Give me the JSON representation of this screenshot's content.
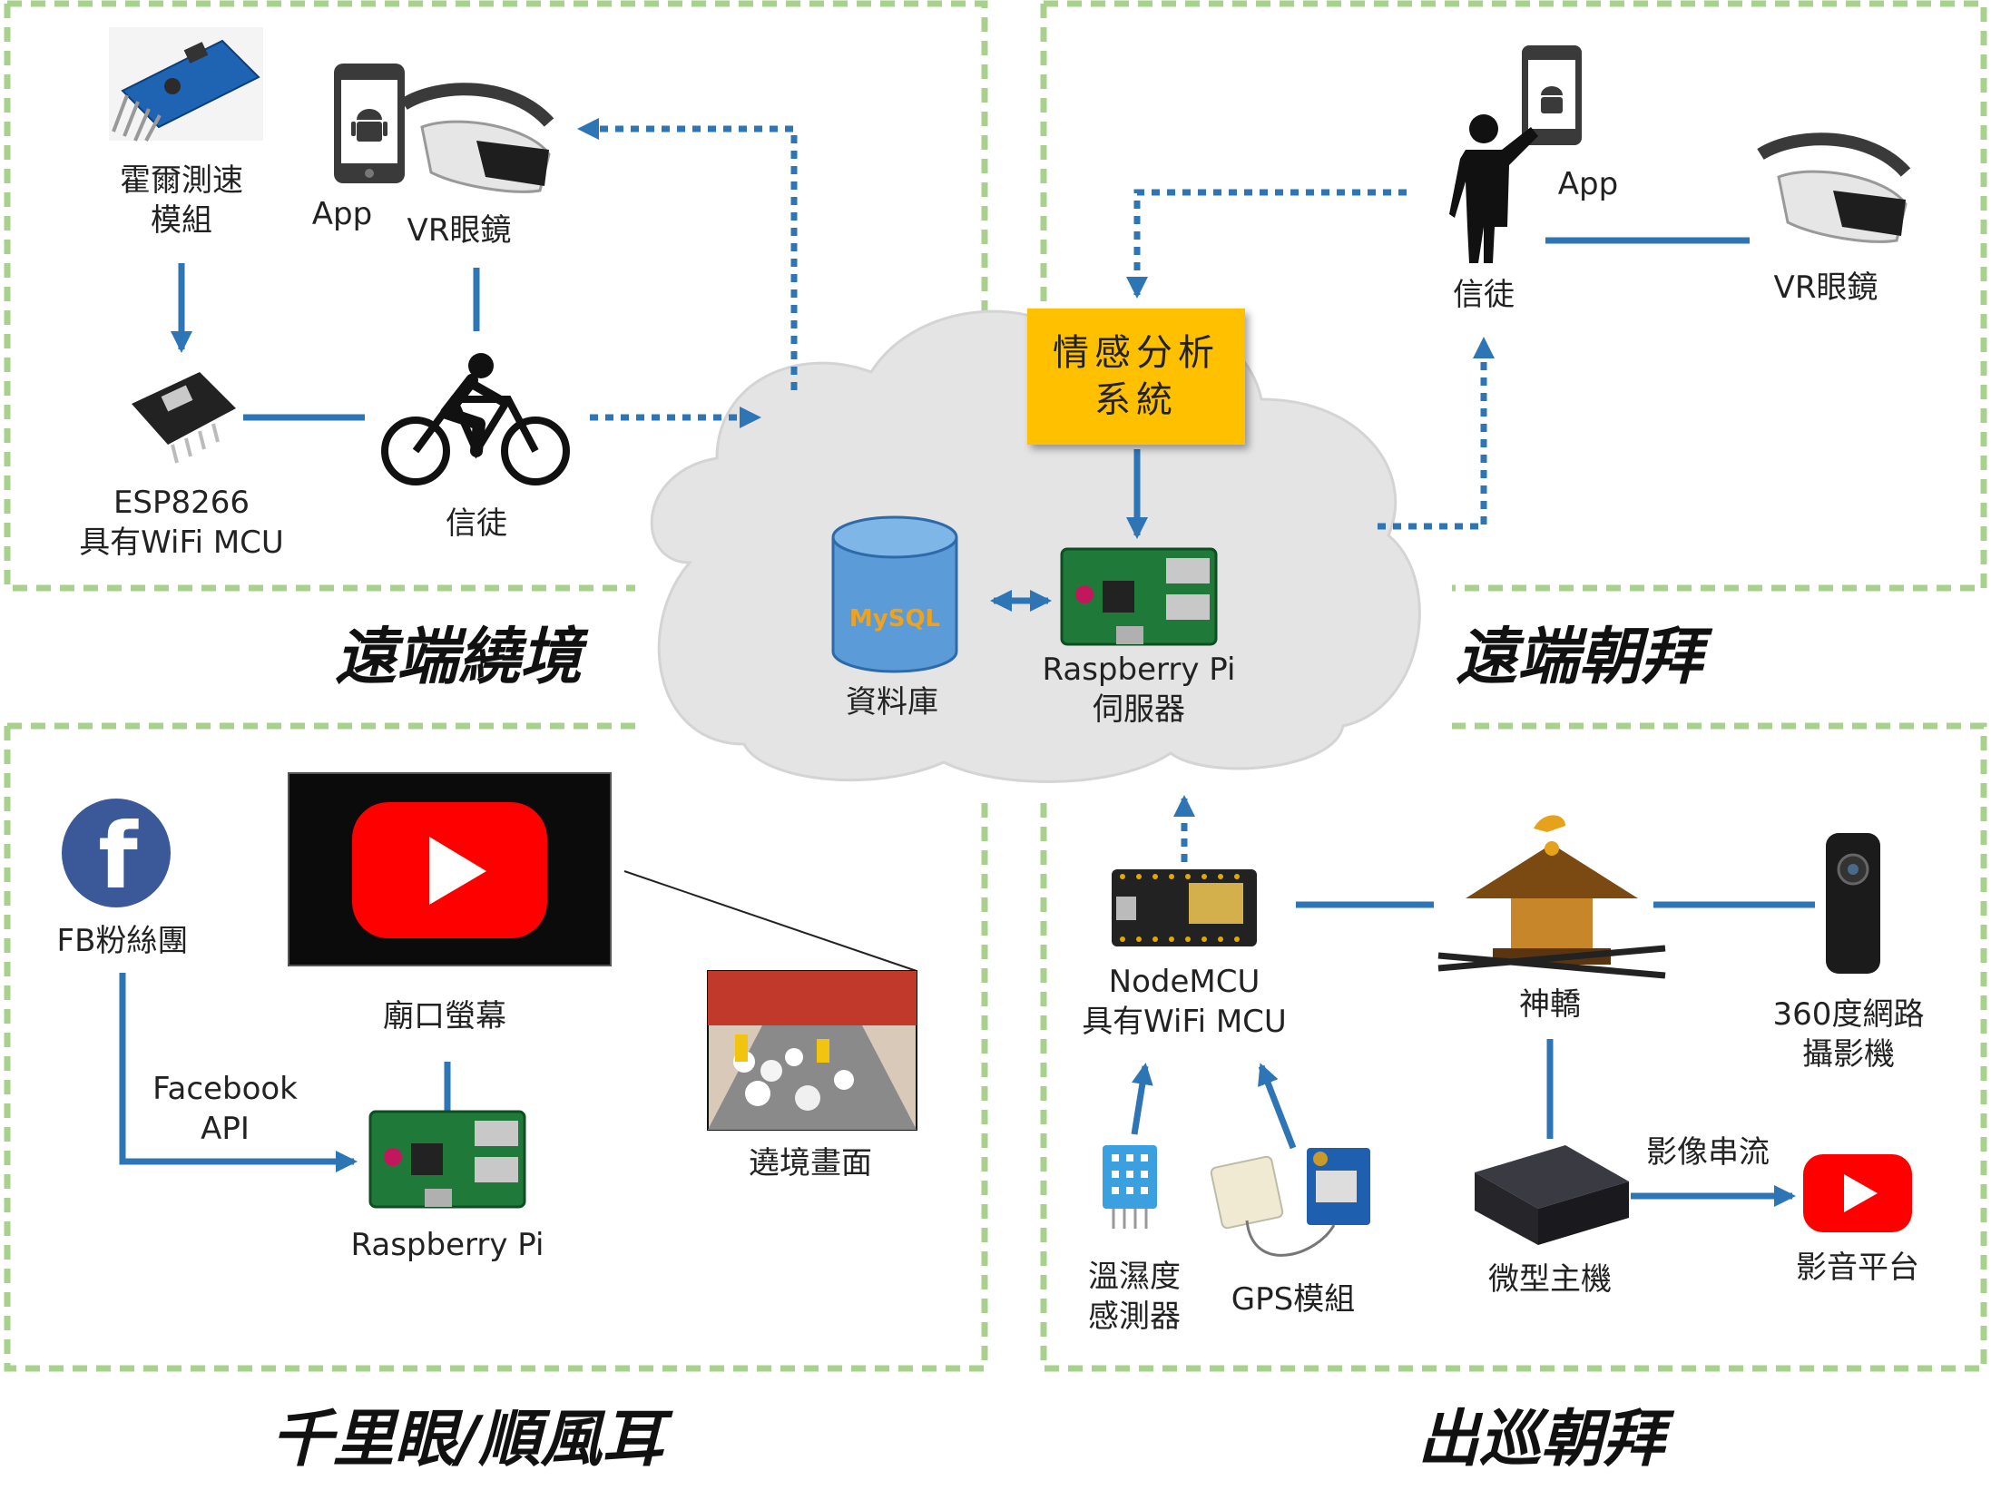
{
  "sections": {
    "remote_pilgrimage_tour": {
      "title": "遠端繞境",
      "hall_sensor": "霍爾測速\n模組",
      "app": "App",
      "vr_glasses": "VR眼鏡",
      "esp8266": "ESP8266\n具有WiFi MCU",
      "believer": "信徒"
    },
    "remote_worship": {
      "title": "遠端朝拜",
      "app": "App",
      "believer": "信徒",
      "vr_glasses": "VR眼鏡"
    },
    "clairvoyance": {
      "title": "千里眼/順風耳",
      "fb_fan_page": "FB粉絲團",
      "temple_screen": "廟口螢幕",
      "facebook_api": "Facebook\nAPI",
      "raspberry_pi": "Raspberry Pi",
      "procession_view": "遶境畫面"
    },
    "procession_worship": {
      "title": "出巡朝拜",
      "nodemcu": "NodeMCU\n具有WiFi MCU",
      "palanquin": "神轎",
      "camera_360": "360度網路\n攝影機",
      "temp_humidity": "溫濕度\n感測器",
      "gps": "GPS模組",
      "mini_pc": "微型主機",
      "video_stream": "影像串流",
      "video_platform": "影音平台"
    }
  },
  "cloud": {
    "emotion_system": "情感分析\n系統",
    "database": "資料庫",
    "server": "Raspberry Pi\n伺服器",
    "mysql_logo": "MySQL"
  },
  "colors": {
    "dashed_border": "#a9d18e",
    "arrow": "#2e75b6",
    "highlight_box": "#ffc000",
    "cloud_fill": "#e4e4e4",
    "youtube_red": "#ff0000",
    "facebook_blue": "#3b5998"
  },
  "icons": [
    "hall-sensor-icon",
    "smartphone-android-icon",
    "vr-headset-icon",
    "esp8266-board-icon",
    "cyclist-icon",
    "person-with-phone-icon",
    "database-cylinder-icon",
    "raspberry-pi-board-icon",
    "facebook-icon",
    "tv-youtube-icon",
    "nodemcu-board-icon",
    "palanquin-icon",
    "camera-360-icon",
    "dht-sensor-icon",
    "gps-module-icon",
    "mini-pc-icon",
    "youtube-icon"
  ]
}
